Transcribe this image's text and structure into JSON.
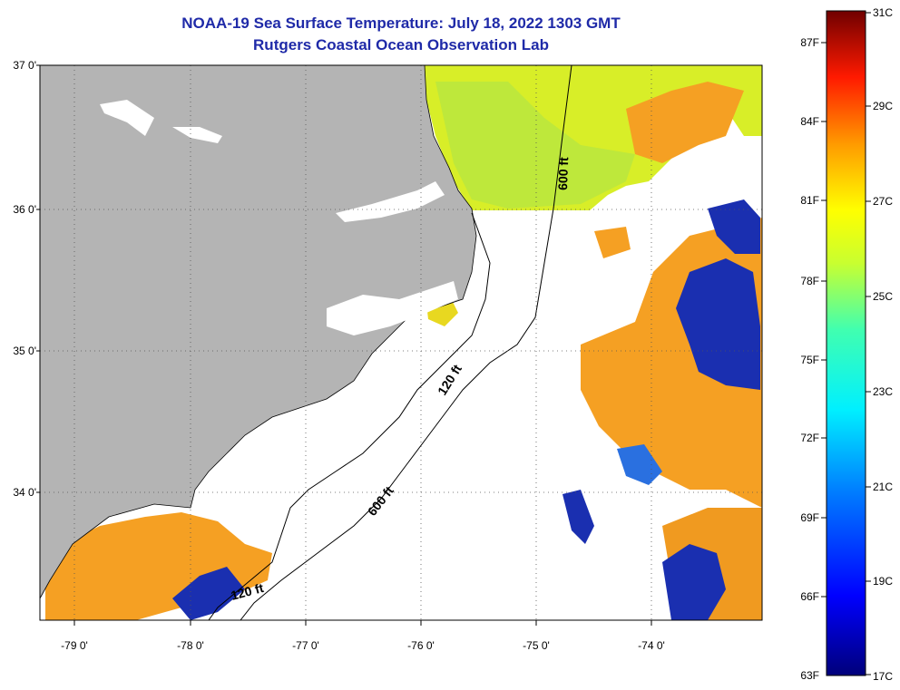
{
  "header": {
    "title": "NOAA-19 Sea Surface Temperature:  July 18, 2022 1303 GMT",
    "subtitle": "Rutgers Coastal Ocean Observation Lab"
  },
  "map": {
    "lat_ticks": [
      "37 0'",
      "36 0'",
      "35 0'",
      "34 0'"
    ],
    "lon_ticks": [
      "-79 0'",
      "-78 0'",
      "-77 0'",
      "-76 0'",
      "-75 0'",
      "-74 0'"
    ],
    "lat_range": [
      33.1,
      37.0
    ],
    "lon_range": [
      -79.3,
      -73.0
    ],
    "grid": "dotted",
    "contours": {
      "shelf_label": "120 ft",
      "slope_label": "600 ft"
    },
    "colors": {
      "land": "#b4b4b4",
      "cloud": "#ffffff",
      "warm_orange": "#f5a023",
      "yellow": "#d8ee28",
      "cold_blue": "#1a2fb0"
    }
  },
  "colorbar": {
    "fahrenheit_ticks": [
      "87F",
      "84F",
      "81F",
      "78F",
      "75F",
      "72F",
      "69F",
      "66F",
      "63F"
    ],
    "celsius_ticks": [
      "31C",
      "29C",
      "27C",
      "25C",
      "23C",
      "21C",
      "19C",
      "17C"
    ],
    "min_celsius": 17,
    "max_celsius": 31
  }
}
